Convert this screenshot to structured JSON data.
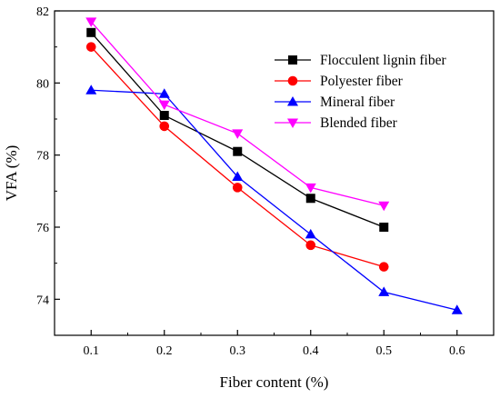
{
  "chart_data": {
    "type": "line",
    "xlabel": "Fiber content (%)",
    "ylabel": "VFA (%)",
    "xlim": [
      0.05,
      0.65
    ],
    "ylim": [
      73,
      82
    ],
    "xticks": [
      0.1,
      0.2,
      0.3,
      0.4,
      0.5,
      0.6
    ],
    "yticks": [
      74,
      76,
      78,
      80,
      82
    ],
    "legend_position": "top-right",
    "grid": false,
    "series": [
      {
        "name": "Flocculent lignin fiber",
        "color": "#000000",
        "marker": "square",
        "x": [
          0.1,
          0.2,
          0.3,
          0.4,
          0.5
        ],
        "y": [
          81.4,
          79.1,
          78.1,
          76.8,
          76.0
        ]
      },
      {
        "name": "Polyester fiber",
        "color": "#ff0000",
        "marker": "circle",
        "x": [
          0.1,
          0.2,
          0.3,
          0.4,
          0.5
        ],
        "y": [
          81.0,
          78.8,
          77.1,
          75.5,
          74.9
        ]
      },
      {
        "name": "Mineral fiber",
        "color": "#0000ff",
        "marker": "triangle-up",
        "x": [
          0.1,
          0.2,
          0.3,
          0.4,
          0.5,
          0.6
        ],
        "y": [
          79.8,
          79.7,
          77.4,
          75.8,
          74.2,
          73.7
        ]
      },
      {
        "name": "Blended fiber",
        "color": "#ff00ff",
        "marker": "triangle-down",
        "x": [
          0.1,
          0.2,
          0.3,
          0.4,
          0.5
        ],
        "y": [
          81.7,
          79.4,
          78.6,
          77.1,
          76.6
        ]
      }
    ]
  }
}
